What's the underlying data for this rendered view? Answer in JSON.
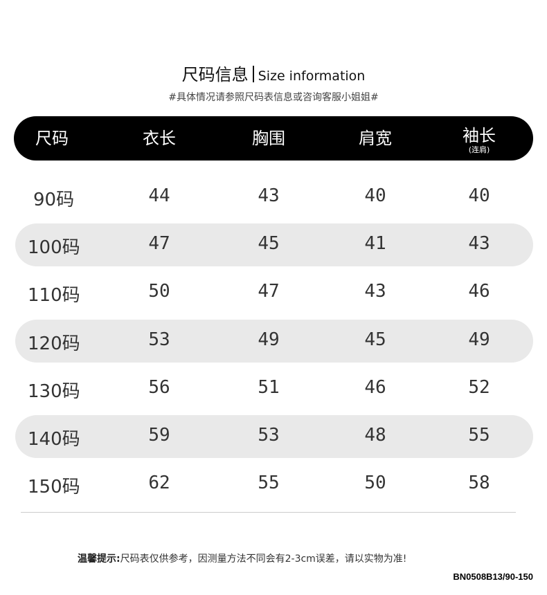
{
  "header": {
    "title_cn": "尺码信息",
    "title_en": "Size information",
    "subtitle": "#具体情况请参照尺码表信息或咨询客服小姐姐#"
  },
  "table": {
    "columns": [
      {
        "label": "尺码",
        "note": ""
      },
      {
        "label": "衣长",
        "note": ""
      },
      {
        "label": "胸围",
        "note": ""
      },
      {
        "label": "肩宽",
        "note": ""
      },
      {
        "label": "袖长",
        "note": "(连肩)"
      }
    ],
    "rows": [
      [
        "90码",
        "44",
        "43",
        "40",
        "40"
      ],
      [
        "100码",
        "47",
        "45",
        "41",
        "43"
      ],
      [
        "110码",
        "50",
        "47",
        "43",
        "46"
      ],
      [
        "120码",
        "53",
        "49",
        "45",
        "49"
      ],
      [
        "130码",
        "56",
        "51",
        "46",
        "52"
      ],
      [
        "140码",
        "59",
        "53",
        "48",
        "55"
      ],
      [
        "150码",
        "62",
        "55",
        "50",
        "58"
      ]
    ]
  },
  "footer": {
    "tip_label": "温馨提示:",
    "tip_text": "尺码表仅供参考，因测量方法不同会有2-3cm误差，请以实物为准!",
    "product_code": "BN0508B13/90-150"
  }
}
